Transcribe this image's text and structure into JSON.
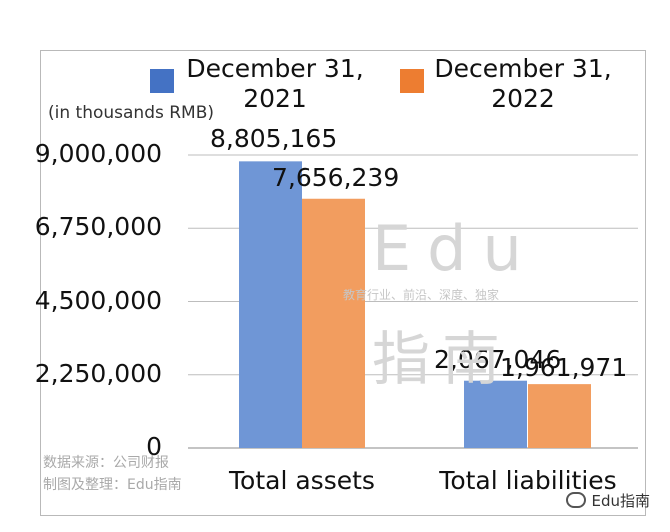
{
  "chart_data": {
    "type": "bar",
    "categories": [
      "Total assets",
      "Total liabilities"
    ],
    "series": [
      {
        "name": "December 31,\n2021",
        "values": [
          8805165,
          2067046
        ],
        "color": "#6f96d6"
      },
      {
        "name": "December 31,\n2022",
        "values": [
          7656239,
          1961971
        ],
        "color": "#f29d5f"
      }
    ],
    "data_labels": [
      [
        "8,805,165",
        "2,067,046"
      ],
      [
        "7,656,239",
        "1,961,971"
      ]
    ],
    "ylabel": "(in thousands RMB)",
    "yticks": [
      "9,000,000",
      "6,750,000",
      "4,500,000",
      "2,250,000",
      "0"
    ],
    "ytick_values": [
      9000000,
      6750000,
      4500000,
      2250000,
      0
    ],
    "ylim": [
      0,
      9000000
    ],
    "grid": true,
    "legend": "top"
  },
  "watermark": {
    "line1": "Edu",
    "line2": "教育行业、前沿、深度、独家",
    "line3": "指南"
  },
  "source": {
    "line1": "数据来源：公司财报",
    "line2": "制图及整理：Edu指南"
  },
  "brand": "Edu指南",
  "colors": {
    "legend_2021": "#4472c4",
    "legend_2022": "#ed7d31"
  }
}
